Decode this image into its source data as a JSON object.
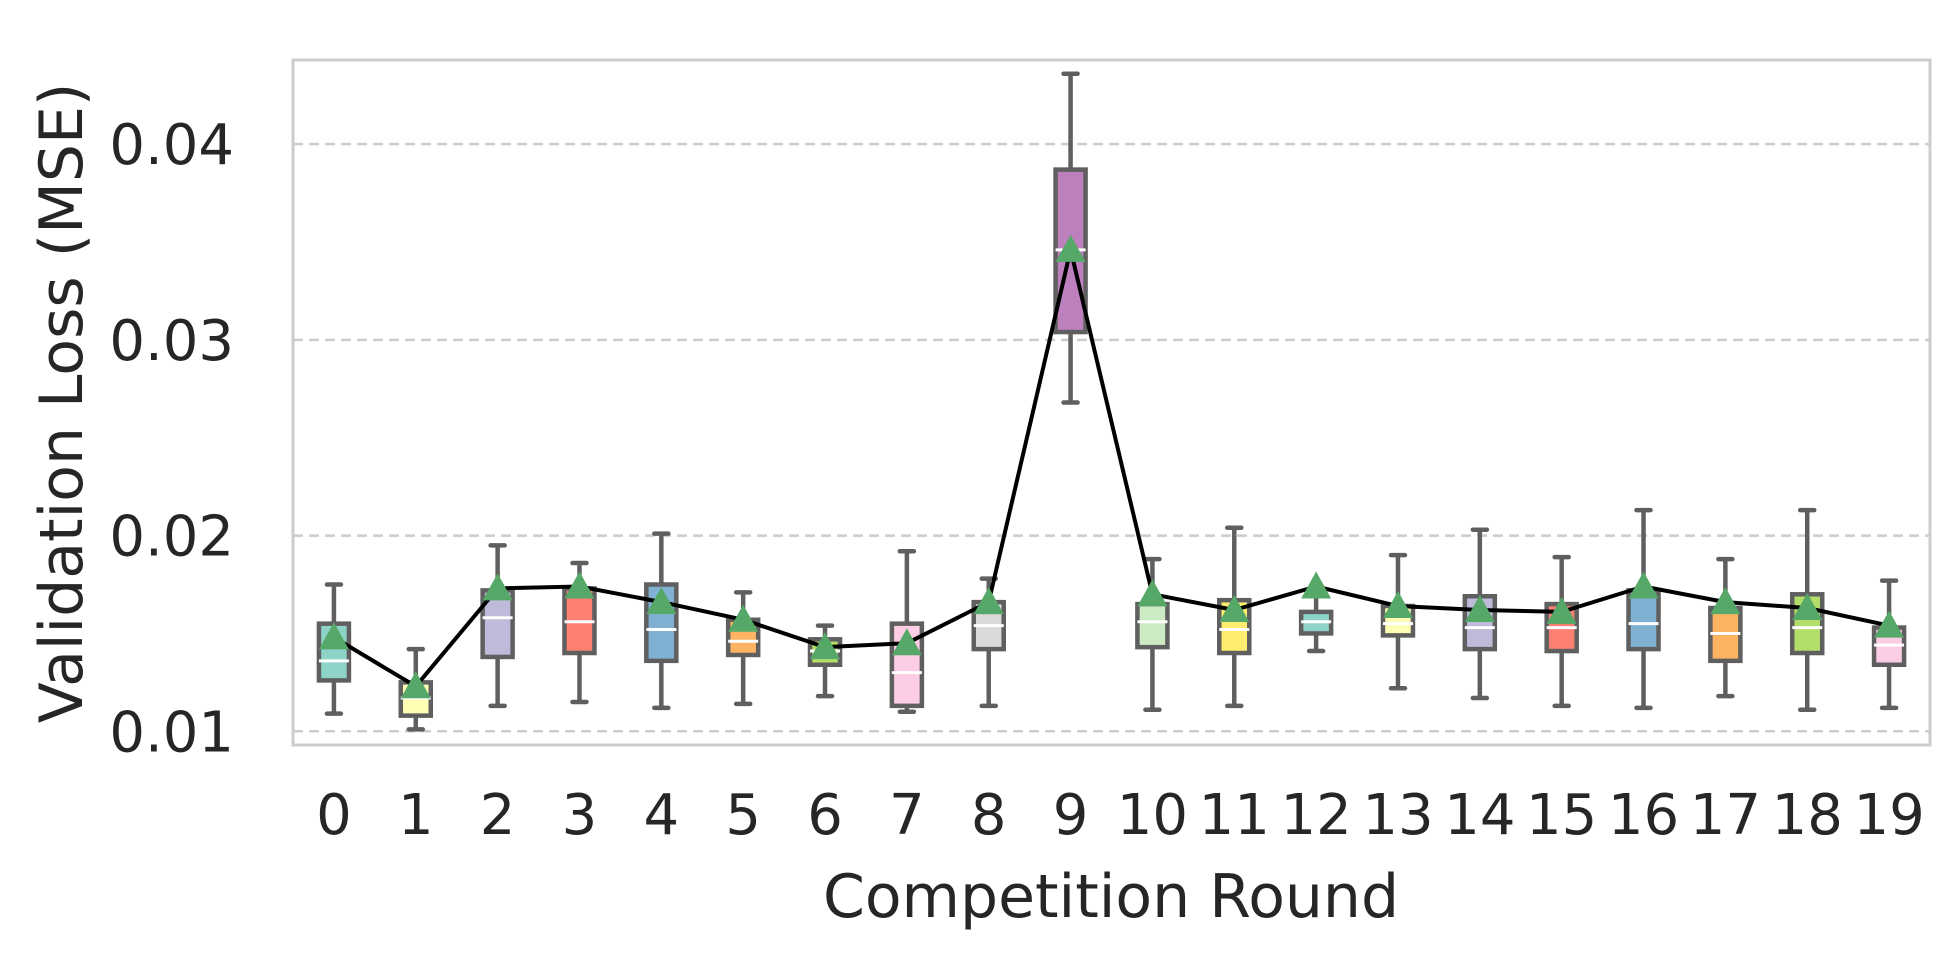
{
  "chart_data": {
    "type": "box",
    "title": "",
    "xlabel": "Competition Round",
    "ylabel": "Validation Loss (MSE)",
    "categories": [
      "0",
      "1",
      "2",
      "3",
      "4",
      "5",
      "6",
      "7",
      "8",
      "9",
      "10",
      "11",
      "12",
      "13",
      "14",
      "15",
      "16",
      "17",
      "18",
      "19"
    ],
    "ylim": [
      0.0093,
      0.0443
    ],
    "yticks": [
      0.01,
      0.02,
      0.03,
      0.04
    ],
    "ytick_labels": [
      "0.01",
      "0.02",
      "0.03",
      "0.04"
    ],
    "grid": {
      "y": true,
      "style": "dashed"
    },
    "boxes": [
      {
        "round": "0",
        "whisker_low": 0.0109,
        "q1": 0.0126,
        "median": 0.0136,
        "q3": 0.0155,
        "whisker_high": 0.0175
      },
      {
        "round": "1",
        "whisker_low": 0.0101,
        "q1": 0.0108,
        "median": 0.0117,
        "q3": 0.0125,
        "whisker_high": 0.0142
      },
      {
        "round": "2",
        "whisker_low": 0.0113,
        "q1": 0.0138,
        "median": 0.0158,
        "q3": 0.0172,
        "whisker_high": 0.0195
      },
      {
        "round": "3",
        "whisker_low": 0.0115,
        "q1": 0.014,
        "median": 0.0156,
        "q3": 0.0173,
        "whisker_high": 0.0186
      },
      {
        "round": "4",
        "whisker_low": 0.0112,
        "q1": 0.0136,
        "median": 0.0152,
        "q3": 0.0175,
        "whisker_high": 0.0201
      },
      {
        "round": "5",
        "whisker_low": 0.0114,
        "q1": 0.0139,
        "median": 0.0146,
        "q3": 0.0157,
        "whisker_high": 0.0171
      },
      {
        "round": "6",
        "whisker_low": 0.0118,
        "q1": 0.0134,
        "median": 0.0141,
        "q3": 0.0147,
        "whisker_high": 0.0154
      },
      {
        "round": "7",
        "whisker_low": 0.011,
        "q1": 0.0113,
        "median": 0.013,
        "q3": 0.0155,
        "whisker_high": 0.0192
      },
      {
        "round": "8",
        "whisker_low": 0.0113,
        "q1": 0.0142,
        "median": 0.0154,
        "q3": 0.0166,
        "whisker_high": 0.0178
      },
      {
        "round": "9",
        "whisker_low": 0.0268,
        "q1": 0.0304,
        "median": 0.0346,
        "q3": 0.0387,
        "whisker_high": 0.0436
      },
      {
        "round": "10",
        "whisker_low": 0.0111,
        "q1": 0.0143,
        "median": 0.0156,
        "q3": 0.0165,
        "whisker_high": 0.0188
      },
      {
        "round": "11",
        "whisker_low": 0.0113,
        "q1": 0.014,
        "median": 0.0152,
        "q3": 0.0167,
        "whisker_high": 0.0204
      },
      {
        "round": "12",
        "whisker_low": 0.0141,
        "q1": 0.015,
        "median": 0.0156,
        "q3": 0.0161,
        "whisker_high": 0.0169
      },
      {
        "round": "13",
        "whisker_low": 0.0122,
        "q1": 0.0149,
        "median": 0.0155,
        "q3": 0.0164,
        "whisker_high": 0.019
      },
      {
        "round": "14",
        "whisker_low": 0.0117,
        "q1": 0.0142,
        "median": 0.0153,
        "q3": 0.0169,
        "whisker_high": 0.0203
      },
      {
        "round": "15",
        "whisker_low": 0.0113,
        "q1": 0.0141,
        "median": 0.0153,
        "q3": 0.0165,
        "whisker_high": 0.0189
      },
      {
        "round": "16",
        "whisker_low": 0.0112,
        "q1": 0.0142,
        "median": 0.0155,
        "q3": 0.0172,
        "whisker_high": 0.0213
      },
      {
        "round": "17",
        "whisker_low": 0.0118,
        "q1": 0.0136,
        "median": 0.015,
        "q3": 0.0163,
        "whisker_high": 0.0188
      },
      {
        "round": "18",
        "whisker_low": 0.0111,
        "q1": 0.014,
        "median": 0.0153,
        "q3": 0.017,
        "whisker_high": 0.0213
      },
      {
        "round": "19",
        "whisker_low": 0.0112,
        "q1": 0.0134,
        "median": 0.0144,
        "q3": 0.0153,
        "whisker_high": 0.0177
      }
    ],
    "means": [
      0.0148,
      0.0123,
      0.0173,
      0.0174,
      0.0166,
      0.0157,
      0.0143,
      0.0145,
      0.0166,
      0.0346,
      0.017,
      0.0162,
      0.0174,
      0.0164,
      0.0162,
      0.0161,
      0.0174,
      0.0166,
      0.0163,
      0.0154
    ],
    "box_colors": [
      "#8dd3c7",
      "#ffffb3",
      "#bebada",
      "#fb8072",
      "#80b1d3",
      "#fdb462",
      "#b3de69",
      "#fccde5",
      "#d9d9d9",
      "#bc80bd",
      "#ccebc5",
      "#ffed6f",
      "#8dd3c7",
      "#ffffb3",
      "#bebada",
      "#fb8072",
      "#80b1d3",
      "#fdb462",
      "#b3de69",
      "#fccde5"
    ],
    "colors": {
      "box_edge": "#5f5f5f",
      "mean_line": "#000000",
      "mean_marker": "#55a868",
      "grid": "#cccccc",
      "frame": "#cccccc",
      "text": "#262626"
    },
    "mean_marker_shape": "triangle"
  }
}
